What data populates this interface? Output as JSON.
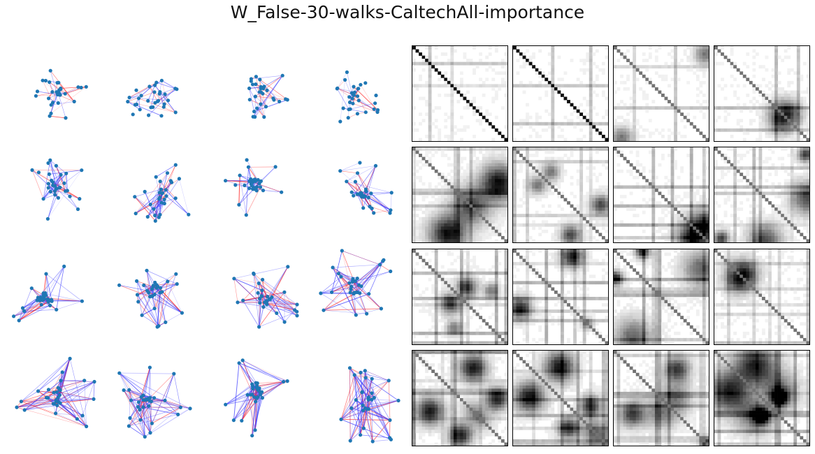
{
  "figure": {
    "title": "W_False-30-walks-CaltechAll-importance"
  },
  "colors": {
    "node": "#1f77b4",
    "edge_positive": "#3b3bff",
    "edge_negative": "#ff2020",
    "matrix_frame": "#000000"
  },
  "network_panels": {
    "rows": 4,
    "cols": 4
  },
  "matrix_panels": {
    "rows": 4,
    "cols": 4,
    "diagonal": "dark stripe along main diagonal"
  }
}
